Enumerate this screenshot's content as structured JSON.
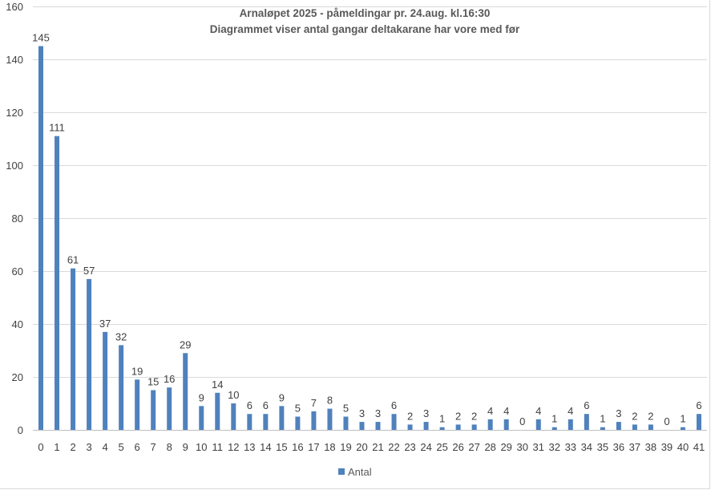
{
  "chart_data": {
    "type": "bar",
    "title": "Arnaløpet 2025 - påmeldingar pr. 24.aug. kl.16:30",
    "subtitle": "Diagrammet viser antal gangar deltakarane har vore med før",
    "xlabel": "",
    "ylabel": "",
    "ylim": [
      0,
      160
    ],
    "yticks": [
      "0",
      "20",
      "40",
      "60",
      "80",
      "100",
      "120",
      "140",
      "160"
    ],
    "categories": [
      "0",
      "1",
      "2",
      "3",
      "4",
      "5",
      "6",
      "7",
      "8",
      "9",
      "10",
      "11",
      "12",
      "13",
      "14",
      "15",
      "16",
      "17",
      "18",
      "19",
      "20",
      "21",
      "22",
      "23",
      "24",
      "25",
      "26",
      "27",
      "28",
      "29",
      "30",
      "31",
      "32",
      "33",
      "34",
      "35",
      "36",
      "37",
      "38",
      "39",
      "40",
      "41"
    ],
    "series": [
      {
        "name": "Antal",
        "color": "#4f81bd",
        "values": [
          145,
          111,
          61,
          57,
          37,
          32,
          19,
          15,
          16,
          29,
          9,
          14,
          10,
          6,
          6,
          9,
          5,
          7,
          8,
          5,
          3,
          3,
          6,
          2,
          3,
          1,
          2,
          2,
          4,
          4,
          0,
          4,
          1,
          4,
          6,
          1,
          3,
          2,
          2,
          0,
          1,
          6
        ]
      }
    ],
    "data_labels": true,
    "grid": true,
    "legend": "bottom"
  }
}
